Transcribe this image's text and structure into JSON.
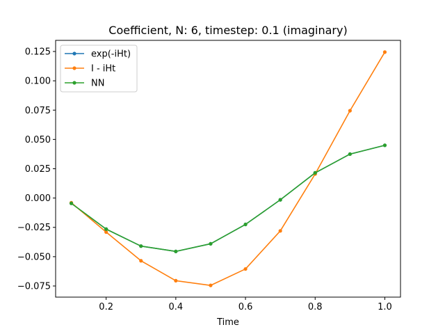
{
  "chart_data": {
    "type": "line",
    "title": "Coefficient, N: 6, timestep: 0.1 (imaginary)",
    "xlabel": "Time",
    "ylabel": "",
    "xlim": [
      0.055,
      1.045
    ],
    "ylim": [
      -0.0845,
      0.1345
    ],
    "xticks": [
      0.2,
      0.4,
      0.6,
      0.8,
      1.0
    ],
    "xtick_labels": [
      "0.2",
      "0.4",
      "0.6",
      "0.8",
      "1.0"
    ],
    "yticks": [
      -0.075,
      -0.05,
      -0.025,
      0.0,
      0.025,
      0.05,
      0.075,
      0.1,
      0.125
    ],
    "ytick_labels": [
      "−0.075",
      "−0.050",
      "−0.025",
      "0.000",
      "0.025",
      "0.050",
      "0.075",
      "0.100",
      "0.125"
    ],
    "grid": false,
    "legend_position": "top-left",
    "x": [
      0.1,
      0.2,
      0.3,
      0.4,
      0.5,
      0.6,
      0.7,
      0.8,
      0.9,
      1.0
    ],
    "series": [
      {
        "name": "exp(-iHt)",
        "color": "#1f77b4",
        "values": [
          -0.0045,
          -0.0265,
          -0.041,
          -0.0455,
          -0.039,
          -0.0225,
          -0.0015,
          0.0215,
          0.0375,
          0.045
        ]
      },
      {
        "name": "I - iHt",
        "color": "#ff7f0e",
        "values": [
          -0.004,
          -0.029,
          -0.0535,
          -0.0705,
          -0.0745,
          -0.0605,
          -0.028,
          0.0205,
          0.0745,
          0.1245
        ]
      },
      {
        "name": "NN",
        "color": "#2ca02c",
        "values": [
          -0.0045,
          -0.0265,
          -0.041,
          -0.0455,
          -0.039,
          -0.0225,
          -0.0015,
          0.0215,
          0.0375,
          0.045
        ]
      }
    ]
  }
}
